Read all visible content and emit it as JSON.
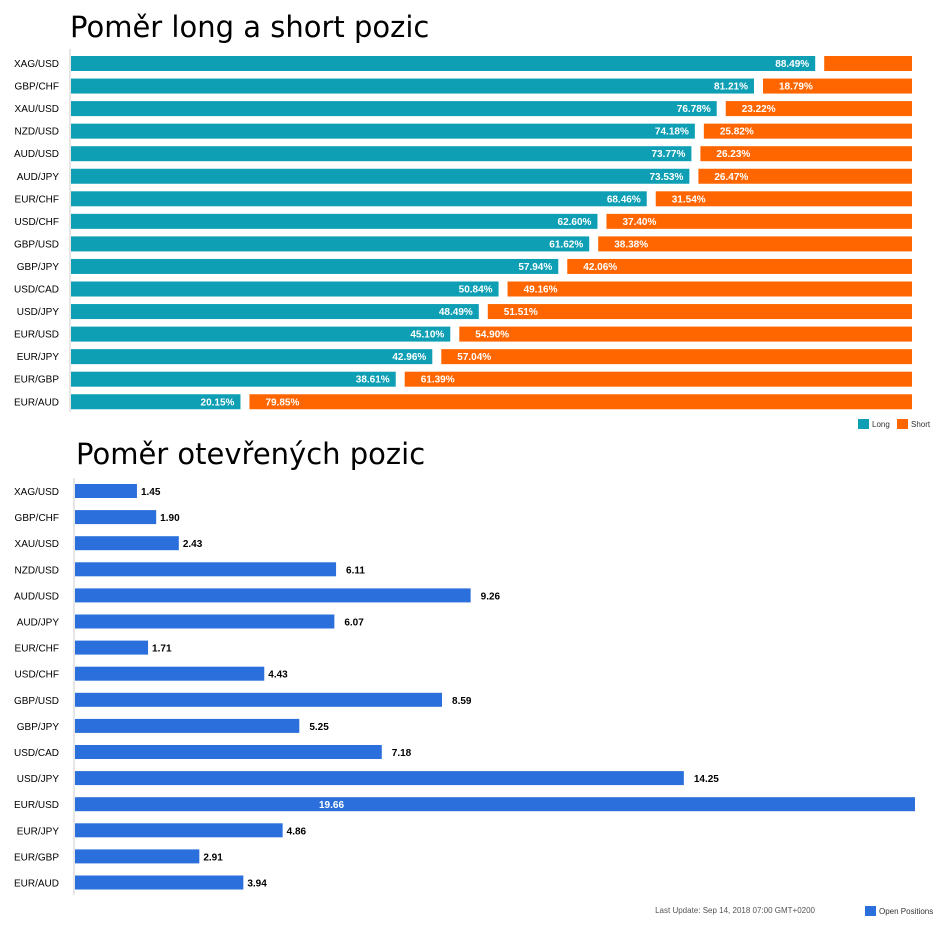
{
  "charts": {
    "ratio": {
      "title": "Poměr long a short pozic"
    },
    "open": {
      "title": "Poměr otevřených pozic",
      "last_update": "Last Update: Sep 14, 2018 07:00 GMT+0200"
    }
  },
  "chart_data": [
    {
      "type": "bar",
      "orientation": "horizontal",
      "stacked": true,
      "title": "Poměr long a short pozic",
      "categories": [
        "XAG/USD",
        "GBP/CHF",
        "XAU/USD",
        "NZD/USD",
        "AUD/USD",
        "AUD/JPY",
        "EUR/CHF",
        "USD/CHF",
        "GBP/USD",
        "GBP/JPY",
        "USD/CAD",
        "USD/JPY",
        "EUR/USD",
        "EUR/JPY",
        "EUR/GBP",
        "EUR/AUD"
      ],
      "series": [
        {
          "name": "Long",
          "color": "#0e9fb5",
          "values": [
            88.49,
            81.21,
            76.78,
            74.18,
            73.77,
            73.53,
            68.46,
            62.6,
            61.62,
            57.94,
            50.84,
            48.49,
            45.1,
            42.96,
            38.61,
            20.15
          ],
          "labels": [
            "88.49%",
            "81.21%",
            "76.78%",
            "74.18%",
            "73.77%",
            "73.53%",
            "68.46%",
            "62.60%",
            "61.62%",
            "57.94%",
            "50.84%",
            "48.49%",
            "45.10%",
            "42.96%",
            "38.61%",
            "20.15%"
          ]
        },
        {
          "name": "Short",
          "color": "#ff6600",
          "values": [
            11.51,
            18.79,
            23.22,
            25.82,
            26.23,
            26.47,
            31.54,
            37.4,
            38.38,
            42.06,
            49.16,
            51.51,
            54.9,
            57.04,
            61.39,
            79.85
          ],
          "labels": [
            "",
            "18.79%",
            "23.22%",
            "25.82%",
            "26.23%",
            "26.47%",
            "31.54%",
            "37.40%",
            "38.38%",
            "42.06%",
            "49.16%",
            "51.51%",
            "54.90%",
            "57.04%",
            "61.39%",
            "79.85%"
          ]
        }
      ],
      "xlim": [
        0,
        100
      ],
      "legend": "bottom-right",
      "grid": false
    },
    {
      "type": "bar",
      "orientation": "horizontal",
      "title": "Poměr otevřených pozic",
      "categories": [
        "XAG/USD",
        "GBP/CHF",
        "XAU/USD",
        "NZD/USD",
        "AUD/USD",
        "AUD/JPY",
        "EUR/CHF",
        "USD/CHF",
        "GBP/USD",
        "GBP/JPY",
        "USD/CAD",
        "USD/JPY",
        "EUR/USD",
        "EUR/JPY",
        "EUR/GBP",
        "EUR/AUD"
      ],
      "series": [
        {
          "name": "Open Positions",
          "color": "#2a6fdb",
          "values": [
            1.45,
            1.9,
            2.43,
            6.11,
            9.26,
            6.07,
            1.71,
            4.43,
            8.59,
            5.25,
            7.18,
            14.25,
            19.66,
            4.86,
            2.91,
            3.94
          ],
          "labels": [
            "1.45",
            "1.90",
            "2.43",
            "6.11",
            "9.26",
            "6.07",
            "1.71",
            "4.43",
            "8.59",
            "5.25",
            "7.18",
            "14.25",
            "19.66",
            "4.86",
            "2.91",
            "3.94"
          ]
        }
      ],
      "xlim": [
        0,
        19.66
      ],
      "legend": "bottom-right",
      "grid": false
    }
  ]
}
